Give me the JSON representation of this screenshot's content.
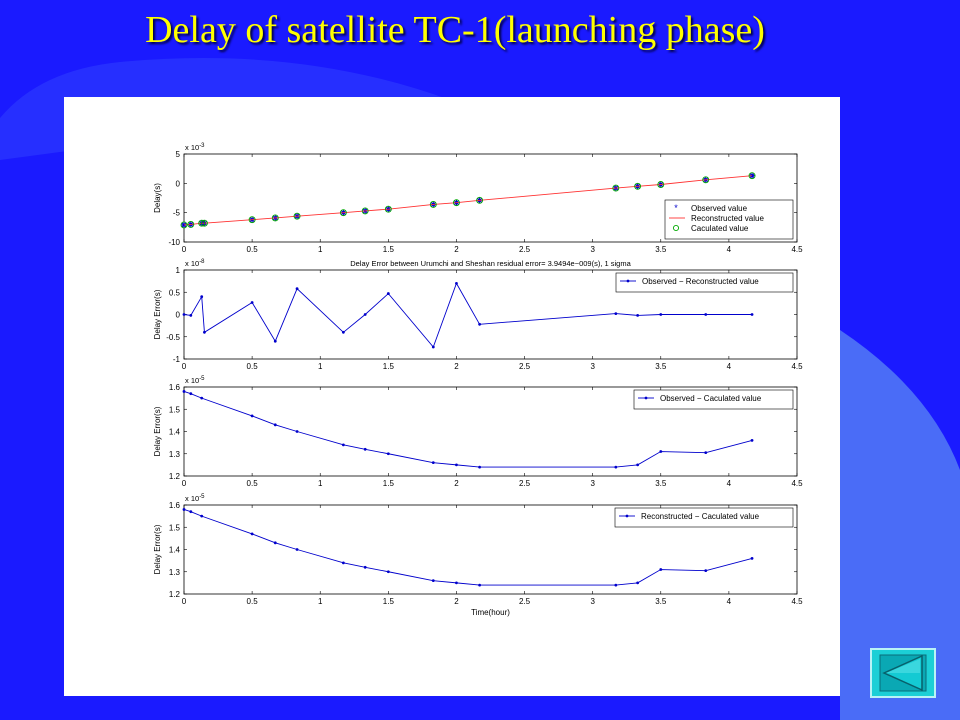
{
  "slide": {
    "title": "Delay of satellite TC-1(launching phase)",
    "background_color": "#1a1aff",
    "accent_color": "#4a6cf7",
    "title_color": "#ffff00"
  },
  "nav": {
    "icon": "back-arrow-icon"
  },
  "chart_data": [
    {
      "type": "scatter",
      "ylabel": "Delay(s)",
      "y_exponent": "x 10^-3",
      "xlim": [
        0,
        4.5
      ],
      "ylim": [
        -10,
        5
      ],
      "x_ticks": [
        "0",
        "0.5",
        "1",
        "1.5",
        "2",
        "2.5",
        "3",
        "3.5",
        "4",
        "4.5"
      ],
      "y_ticks": [
        "-10",
        "-5",
        "0",
        "5"
      ],
      "grid": false,
      "legend_position": "lower-right",
      "x": [
        0.0,
        0.05,
        0.13,
        0.15,
        0.5,
        0.67,
        0.83,
        1.17,
        1.33,
        1.5,
        1.83,
        2.0,
        2.17,
        3.17,
        3.33,
        3.5,
        3.83,
        4.17
      ],
      "series": [
        {
          "name": "Observed value",
          "style": "points",
          "marker": "*",
          "color": "#0000cc",
          "values": [
            -7.1,
            -7.0,
            -6.8,
            -6.8,
            -6.2,
            -5.9,
            -5.6,
            -5.0,
            -4.7,
            -4.4,
            -3.6,
            -3.3,
            -2.9,
            -0.8,
            -0.5,
            -0.2,
            0.6,
            1.3
          ]
        },
        {
          "name": "Reconstructed value",
          "style": "line",
          "color": "#ff3333",
          "values": [
            -7.1,
            -7.0,
            -6.8,
            -6.8,
            -6.2,
            -5.9,
            -5.6,
            -5.0,
            -4.7,
            -4.4,
            -3.6,
            -3.3,
            -2.9,
            -0.8,
            -0.5,
            -0.2,
            0.6,
            1.3
          ]
        },
        {
          "name": "Caculated value",
          "style": "points",
          "marker": "o",
          "color": "#00aa00",
          "values": [
            -7.1,
            -7.0,
            -6.8,
            -6.8,
            -6.2,
            -5.9,
            -5.6,
            -5.0,
            -4.7,
            -4.4,
            -3.6,
            -3.3,
            -2.9,
            -0.8,
            -0.5,
            -0.2,
            0.6,
            1.3
          ]
        }
      ]
    },
    {
      "type": "line",
      "title": "Delay Error between Urumchi and Sheshan    residual error= 3.9494e−009(s), 1 sigma",
      "ylabel": "Delay Error(s)",
      "y_exponent": "x 10^-8",
      "xlim": [
        0,
        4.5
      ],
      "ylim": [
        -1,
        1
      ],
      "x_ticks": [
        "0",
        "0.5",
        "1",
        "1.5",
        "2",
        "2.5",
        "3",
        "3.5",
        "4",
        "4.5"
      ],
      "y_ticks": [
        "-1",
        "-0.5",
        "0",
        "0.5",
        "1"
      ],
      "grid": false,
      "legend_position": "top-right",
      "x": [
        0.0,
        0.05,
        0.13,
        0.15,
        0.5,
        0.67,
        0.83,
        1.17,
        1.33,
        1.5,
        1.83,
        2.0,
        2.17,
        3.17,
        3.33,
        3.5,
        3.83,
        4.17
      ],
      "series": [
        {
          "name": "Observed − Reconstructed value",
          "color": "#0000cc",
          "values": [
            0.0,
            -0.02,
            0.4,
            -0.4,
            0.27,
            -0.6,
            0.58,
            -0.4,
            0.0,
            0.47,
            -0.73,
            0.7,
            -0.22,
            0.02,
            -0.02,
            0.0,
            0.0,
            0.0
          ]
        }
      ]
    },
    {
      "type": "line",
      "ylabel": "Delay Error(s)",
      "y_exponent": "x 10^-5",
      "xlim": [
        0,
        4.5
      ],
      "ylim": [
        1.2,
        1.6
      ],
      "x_ticks": [
        "0",
        "0.5",
        "1",
        "1.5",
        "2",
        "2.5",
        "3",
        "3.5",
        "4",
        "4.5"
      ],
      "y_ticks": [
        "1.2",
        "1.3",
        "1.4",
        "1.5",
        "1.6"
      ],
      "grid": false,
      "legend_position": "top-right",
      "x": [
        0.0,
        0.05,
        0.13,
        0.5,
        0.67,
        0.83,
        1.17,
        1.33,
        1.5,
        1.83,
        2.0,
        2.17,
        3.17,
        3.33,
        3.5,
        3.83,
        4.17
      ],
      "series": [
        {
          "name": "Observed − Caculated value",
          "color": "#0000cc",
          "values": [
            1.58,
            1.57,
            1.55,
            1.47,
            1.43,
            1.4,
            1.34,
            1.32,
            1.3,
            1.26,
            1.25,
            1.24,
            1.24,
            1.25,
            1.31,
            1.305,
            1.36
          ]
        }
      ]
    },
    {
      "type": "line",
      "xlabel": "Time(hour)",
      "ylabel": "Delay Error(s)",
      "y_exponent": "x 10^-5",
      "xlim": [
        0,
        4.5
      ],
      "ylim": [
        1.2,
        1.6
      ],
      "x_ticks": [
        "0",
        "0.5",
        "1",
        "1.5",
        "2",
        "2.5",
        "3",
        "3.5",
        "4",
        "4.5"
      ],
      "y_ticks": [
        "1.2",
        "1.3",
        "1.4",
        "1.5",
        "1.6"
      ],
      "grid": false,
      "legend_position": "top-right",
      "x": [
        0.0,
        0.05,
        0.13,
        0.5,
        0.67,
        0.83,
        1.17,
        1.33,
        1.5,
        1.83,
        2.0,
        2.17,
        3.17,
        3.33,
        3.5,
        3.83,
        4.17
      ],
      "series": [
        {
          "name": "Reconstructed − Caculated value",
          "color": "#0000cc",
          "values": [
            1.58,
            1.57,
            1.55,
            1.47,
            1.43,
            1.4,
            1.34,
            1.32,
            1.3,
            1.26,
            1.25,
            1.24,
            1.24,
            1.25,
            1.31,
            1.305,
            1.36
          ]
        }
      ]
    }
  ]
}
